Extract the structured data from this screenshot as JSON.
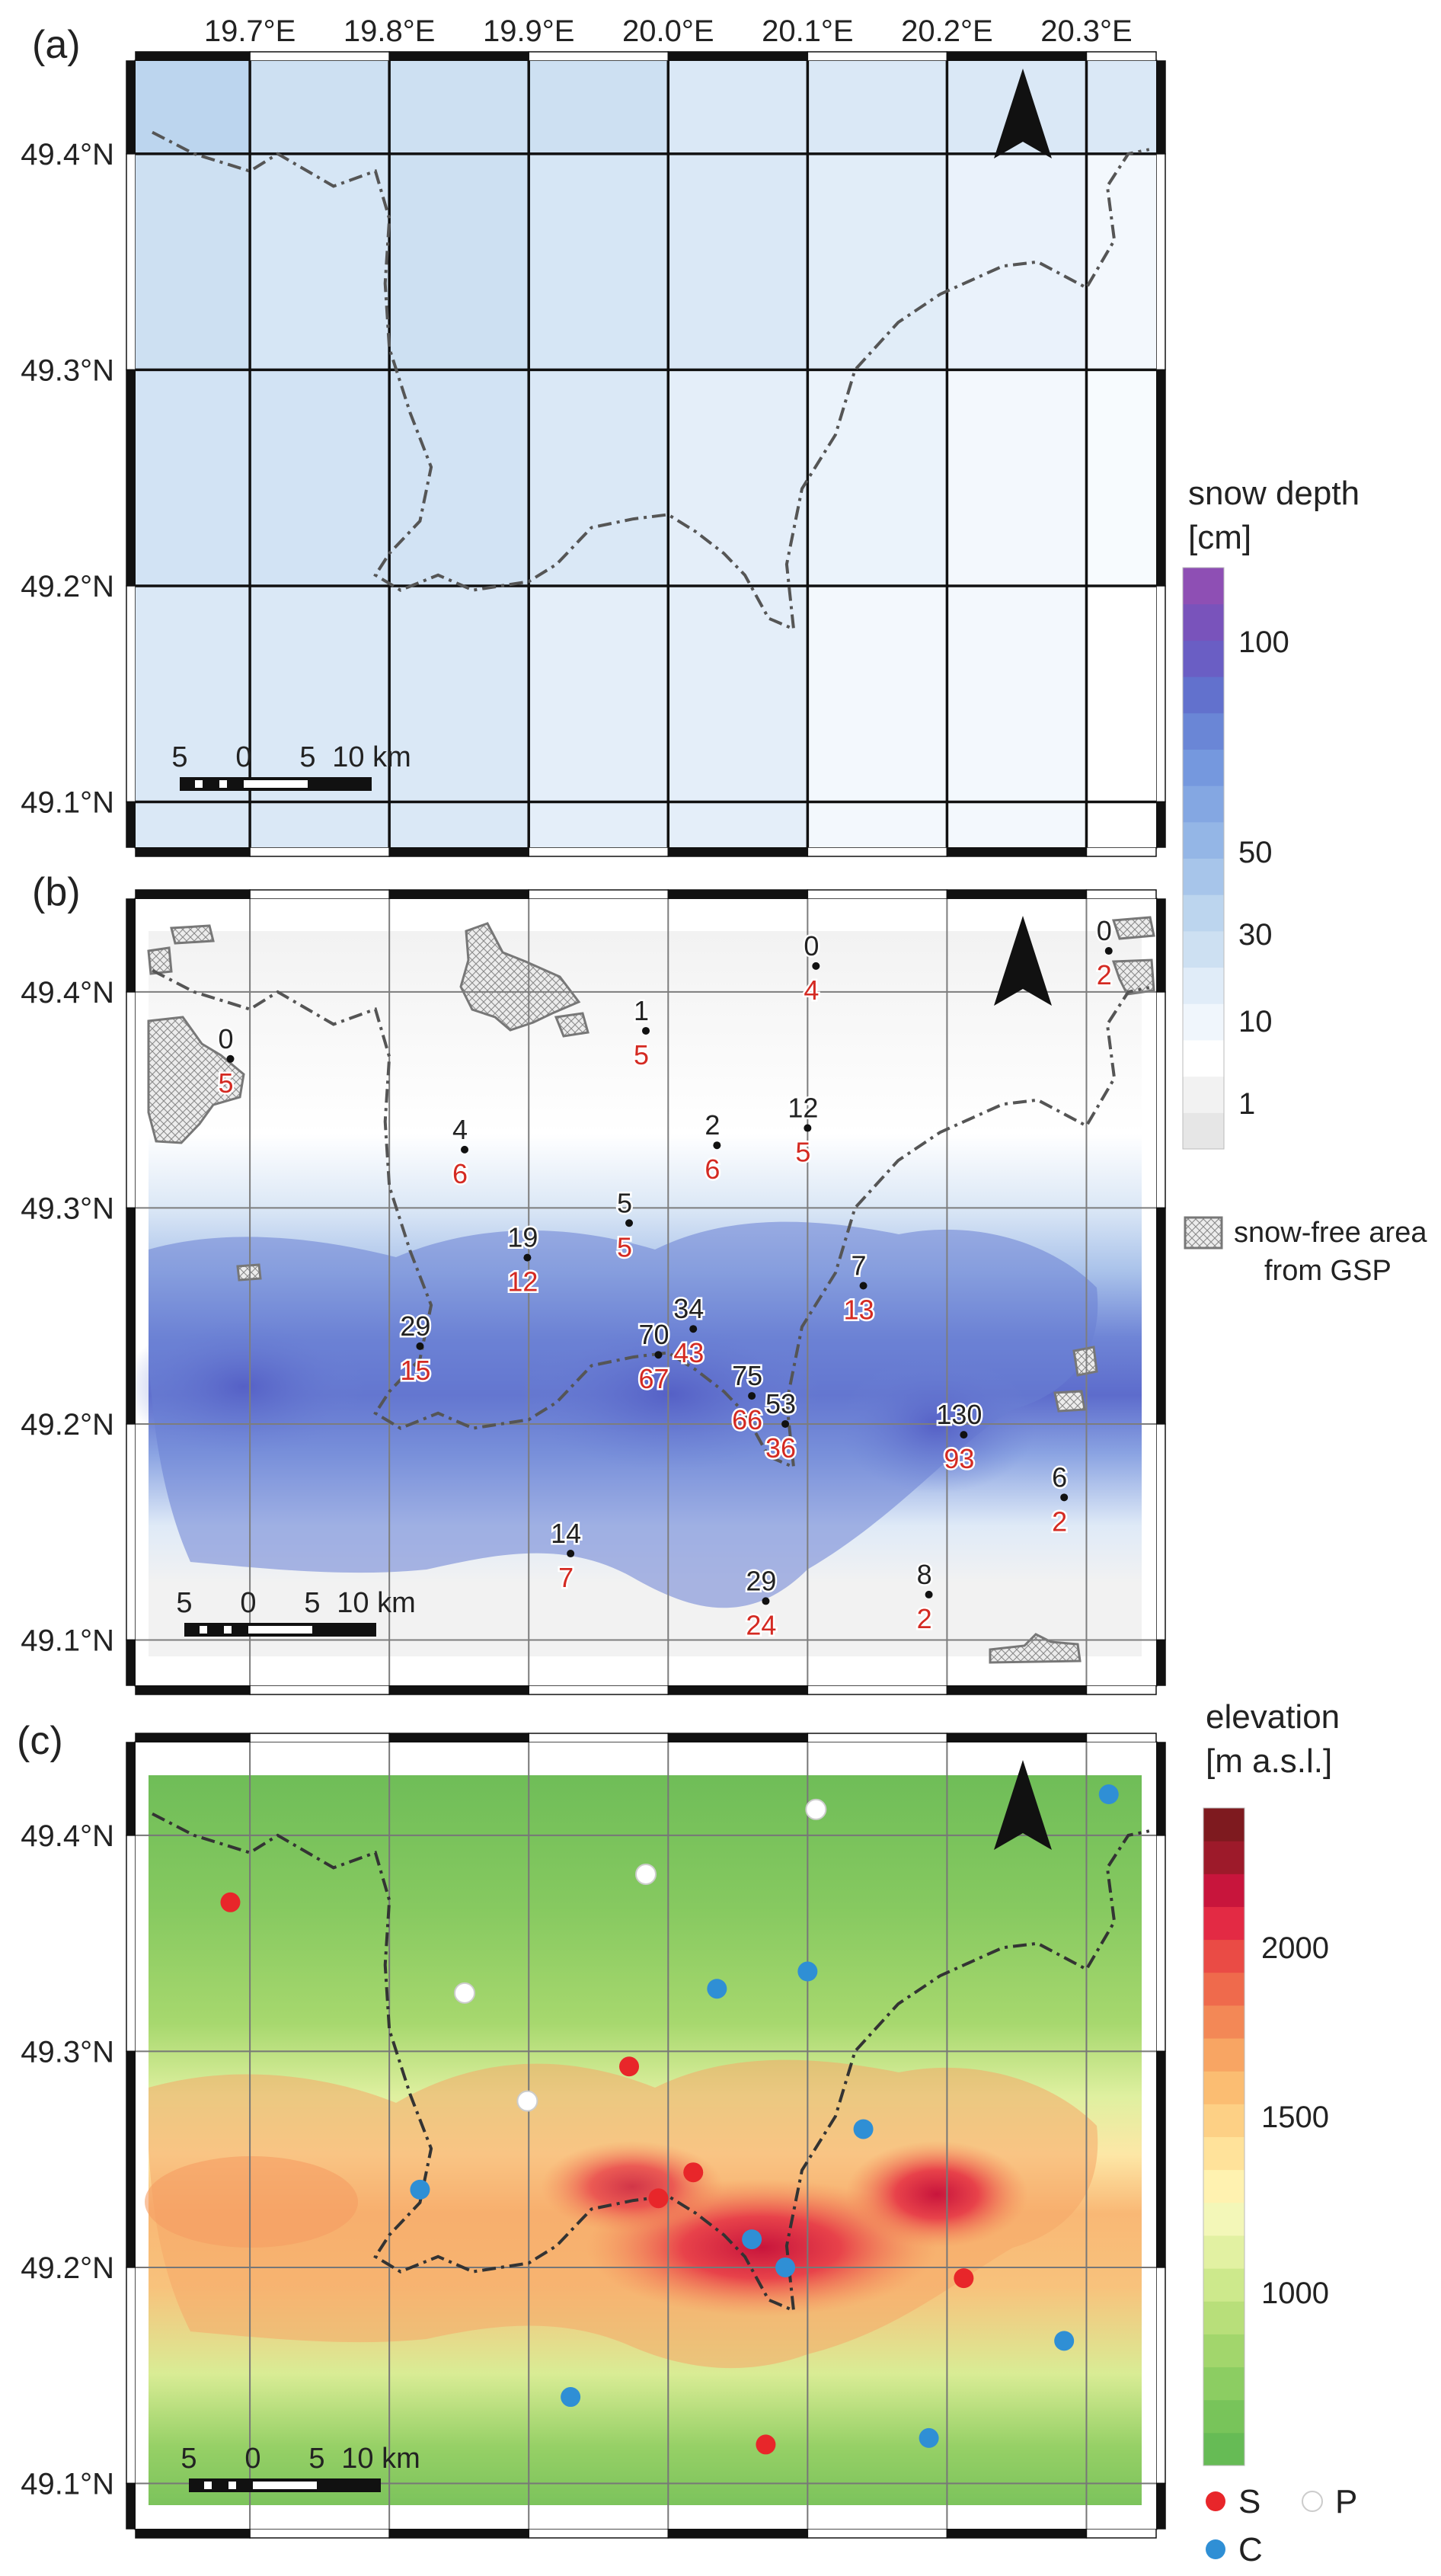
{
  "figure": {
    "lon_ticks": [
      "19.7°E",
      "19.8°E",
      "19.9°E",
      "20.0°E",
      "20.1°E",
      "20.2°E",
      "20.3°E"
    ],
    "lat_ticks": [
      "49.4°N",
      "49.3°N",
      "49.2°N",
      "49.1°N"
    ],
    "panels": [
      {
        "label": "(a)"
      },
      {
        "label": "(b)"
      },
      {
        "label": "(c)"
      }
    ],
    "scalebar": {
      "labels": [
        "5",
        "0",
        "5",
        "10 km"
      ]
    },
    "north_arrow": "north-arrow-icon",
    "boundary_style": "dash-dot grey line"
  },
  "legend_snow": {
    "title_line1": "snow depth",
    "title_line2": "[cm]",
    "ticks": [
      "100",
      "50",
      "30",
      "10",
      "1"
    ],
    "colors": [
      "#e6e6e6",
      "#f2f2f2",
      "#ffffff",
      "#f0f6fc",
      "#e0ecf8",
      "#cde0f2",
      "#bcd5ee",
      "#a7c5ea",
      "#94b6e6",
      "#84a7e2",
      "#7598de",
      "#6a86d6",
      "#6271cd",
      "#6a5ec4",
      "#7953bb",
      "#8e4fb4"
    ]
  },
  "legend_gsp": {
    "line1": "snow-free area",
    "line2": "from GSP"
  },
  "legend_elev": {
    "title_line1": "elevation",
    "title_line2": "[m a.s.l.]",
    "ticks": [
      "2000",
      "1500",
      "1000"
    ],
    "colors": [
      "#66bb55",
      "#78c45a",
      "#8ccd62",
      "#a2d66c",
      "#b8df7a",
      "#cde98c",
      "#e2f1a2",
      "#f3f7b8",
      "#fff2b0",
      "#ffe29a",
      "#fdd085",
      "#fbbd72",
      "#f8a563",
      "#f38856",
      "#ef6a4c",
      "#ea4b45",
      "#e32a44",
      "#c8153c",
      "#9d1a2a",
      "#7e1a1f"
    ]
  },
  "legend_stations": [
    {
      "label": "S",
      "color": "#e8262a"
    },
    {
      "label": "P",
      "color": "#ffffff"
    },
    {
      "label": "C",
      "color": "#2f8fd5"
    }
  ],
  "stations": [
    {
      "lon": 19.686,
      "lat": 49.369,
      "obs": "0",
      "model": "5",
      "type": "S"
    },
    {
      "lon": 19.854,
      "lat": 49.327,
      "obs": "4",
      "model": "6",
      "type": "P"
    },
    {
      "lon": 19.822,
      "lat": 49.236,
      "obs": "29",
      "model": "15",
      "type": "C"
    },
    {
      "lon": 19.899,
      "lat": 49.277,
      "obs": "19",
      "model": "12",
      "type": "P"
    },
    {
      "lon": 19.93,
      "lat": 49.14,
      "obs": "14",
      "model": "7",
      "type": "C"
    },
    {
      "lon": 19.972,
      "lat": 49.293,
      "obs": "5",
      "model": "5",
      "type": "S"
    },
    {
      "lon": 19.984,
      "lat": 49.382,
      "obs": "1",
      "model": "5",
      "type": "P"
    },
    {
      "lon": 19.993,
      "lat": 49.232,
      "obs": "70",
      "model": "67",
      "type": "S"
    },
    {
      "lon": 20.018,
      "lat": 49.244,
      "obs": "34",
      "model": "43",
      "type": "S"
    },
    {
      "lon": 20.035,
      "lat": 49.329,
      "obs": "2",
      "model": "6",
      "type": "C"
    },
    {
      "lon": 20.06,
      "lat": 49.213,
      "obs": "75",
      "model": "66",
      "type": "C"
    },
    {
      "lon": 20.07,
      "lat": 49.118,
      "obs": "29",
      "model": "24",
      "type": "S"
    },
    {
      "lon": 20.084,
      "lat": 49.2,
      "obs": "53",
      "model": "36",
      "type": "C"
    },
    {
      "lon": 20.1,
      "lat": 49.337,
      "obs": "12",
      "model": "5",
      "type": "C"
    },
    {
      "lon": 20.106,
      "lat": 49.412,
      "obs": "0",
      "model": "4",
      "type": "P"
    },
    {
      "lon": 20.14,
      "lat": 49.264,
      "obs": "7",
      "model": "13",
      "type": "C"
    },
    {
      "lon": 20.187,
      "lat": 49.121,
      "obs": "8",
      "model": "2",
      "type": "C"
    },
    {
      "lon": 20.212,
      "lat": 49.195,
      "obs": "130",
      "model": "93",
      "type": "S"
    },
    {
      "lon": 20.284,
      "lat": 49.166,
      "obs": "6",
      "model": "2",
      "type": "C"
    },
    {
      "lon": 20.316,
      "lat": 49.419,
      "obs": "0",
      "model": "2",
      "type": "C"
    }
  ]
}
